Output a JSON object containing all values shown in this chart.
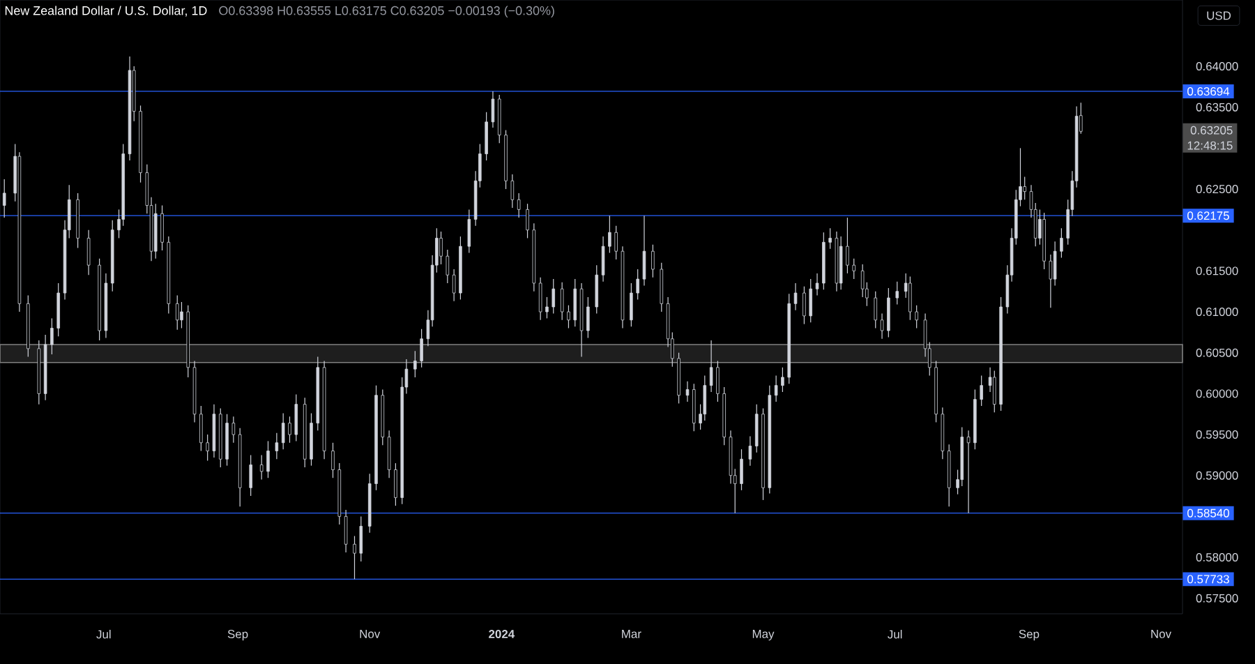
{
  "chart_data": {
    "type": "candlestick",
    "title": "New Zealand Dollar / U.S. Dollar, 1D",
    "subtitle": "O0.63398 H0.63555 L0.63175 C0.63205 −0.00193 (−0.30%)",
    "ylabel": "USD",
    "color": "#d1d4dc",
    "x": [
      "2023-05-16",
      "2023-05-21",
      "2023-05-23",
      "2023-05-27",
      "2023-06-01",
      "2023-06-04",
      "2023-06-07",
      "2023-06-10",
      "2023-06-13",
      "2023-06-15",
      "2023-06-19",
      "2023-06-24",
      "2023-06-29",
      "2023-07-02",
      "2023-07-05",
      "2023-07-08",
      "2023-07-10",
      "2023-07-13",
      "2023-07-15",
      "2023-07-18",
      "2023-07-21",
      "2023-07-23",
      "2023-07-25",
      "2023-07-28",
      "2023-07-31",
      "2023-08-04",
      "2023-08-06",
      "2023-08-09",
      "2023-08-12",
      "2023-08-15",
      "2023-08-18",
      "2023-08-21",
      "2023-08-24",
      "2023-08-27",
      "2023-08-30",
      "2023-09-02",
      "2023-09-07",
      "2023-09-12",
      "2023-09-15",
      "2023-09-19",
      "2023-09-22",
      "2023-09-25",
      "2023-09-28",
      "2023-10-02",
      "2023-10-05",
      "2023-10-08",
      "2023-10-11",
      "2023-10-15",
      "2023-10-18",
      "2023-10-21",
      "2023-10-25",
      "2023-10-28",
      "2023-11-01",
      "2023-11-04",
      "2023-11-07",
      "2023-11-10",
      "2023-11-13",
      "2023-11-16",
      "2023-11-18",
      "2023-11-22",
      "2023-11-25",
      "2023-11-28",
      "2023-11-30",
      "2023-12-02",
      "2023-12-04",
      "2023-12-07",
      "2023-12-10",
      "2023-12-13",
      "2023-12-17",
      "2023-12-20",
      "2023-12-22",
      "2023-12-25",
      "2023-12-28",
      "2023-12-31",
      "2024-01-03",
      "2024-01-06",
      "2024-01-09",
      "2024-01-13",
      "2024-01-16",
      "2024-01-19",
      "2024-01-22",
      "2024-01-25",
      "2024-01-29",
      "2024-02-01",
      "2024-02-04",
      "2024-02-07",
      "2024-02-10",
      "2024-02-14",
      "2024-02-17",
      "2024-02-20",
      "2024-02-23",
      "2024-02-26",
      "2024-03-01",
      "2024-03-04",
      "2024-03-07",
      "2024-03-11",
      "2024-03-15",
      "2024-03-18",
      "2024-03-20",
      "2024-03-23",
      "2024-03-27",
      "2024-03-30",
      "2024-04-02",
      "2024-04-04",
      "2024-04-07",
      "2024-04-10",
      "2024-04-13",
      "2024-04-16",
      "2024-04-18",
      "2024-04-21",
      "2024-04-25",
      "2024-04-28",
      "2024-05-01",
      "2024-05-04",
      "2024-05-07",
      "2024-05-10",
      "2024-05-13",
      "2024-05-16",
      "2024-05-20",
      "2024-05-23",
      "2024-05-26",
      "2024-05-29",
      "2024-06-01",
      "2024-06-04",
      "2024-06-06",
      "2024-06-09",
      "2024-06-12",
      "2024-06-16",
      "2024-06-18",
      "2024-06-22",
      "2024-06-25",
      "2024-06-28",
      "2024-07-02",
      "2024-07-06",
      "2024-07-08",
      "2024-07-11",
      "2024-07-15",
      "2024-07-17",
      "2024-07-20",
      "2024-07-23",
      "2024-07-26",
      "2024-07-30",
      "2024-08-01",
      "2024-08-04",
      "2024-08-07",
      "2024-08-10",
      "2024-08-14",
      "2024-08-16",
      "2024-08-19",
      "2024-08-22",
      "2024-08-24",
      "2024-08-26",
      "2024-08-28",
      "2024-08-30",
      "2024-09-02",
      "2024-09-04",
      "2024-09-06",
      "2024-09-08",
      "2024-09-11",
      "2024-09-13",
      "2024-09-16",
      "2024-09-19",
      "2024-09-21",
      "2024-09-23",
      "2024-09-25"
    ],
    "ohlc": [
      [
        0.623,
        0.6262,
        0.6215,
        0.6245
      ],
      [
        0.6245,
        0.6305,
        0.6235,
        0.629
      ],
      [
        0.629,
        0.6295,
        0.61,
        0.611
      ],
      [
        0.611,
        0.612,
        0.6045,
        0.6055
      ],
      [
        0.6055,
        0.6065,
        0.5987,
        0.6
      ],
      [
        0.6,
        0.6072,
        0.5992,
        0.606
      ],
      [
        0.606,
        0.6092,
        0.6048,
        0.608
      ],
      [
        0.608,
        0.6135,
        0.607,
        0.6123
      ],
      [
        0.6123,
        0.6212,
        0.6115,
        0.62
      ],
      [
        0.62,
        0.6255,
        0.619,
        0.6237
      ],
      [
        0.6237,
        0.6245,
        0.6178,
        0.619
      ],
      [
        0.619,
        0.62,
        0.6145,
        0.6157
      ],
      [
        0.6157,
        0.6165,
        0.6065,
        0.6077
      ],
      [
        0.6077,
        0.6147,
        0.6068,
        0.6135
      ],
      [
        0.6135,
        0.6212,
        0.6125,
        0.62
      ],
      [
        0.62,
        0.6225,
        0.619,
        0.6213
      ],
      [
        0.6213,
        0.6305,
        0.6205,
        0.6293
      ],
      [
        0.6293,
        0.6412,
        0.6285,
        0.6395
      ],
      [
        0.6395,
        0.64,
        0.6333,
        0.6345
      ],
      [
        0.6345,
        0.6352,
        0.6258,
        0.627
      ],
      [
        0.627,
        0.628,
        0.622,
        0.623
      ],
      [
        0.623,
        0.624,
        0.6162,
        0.6174
      ],
      [
        0.6174,
        0.6232,
        0.6165,
        0.622
      ],
      [
        0.622,
        0.623,
        0.6175,
        0.6185
      ],
      [
        0.6185,
        0.6192,
        0.6098,
        0.611
      ],
      [
        0.611,
        0.612,
        0.6078,
        0.609
      ],
      [
        0.609,
        0.6112,
        0.608,
        0.61
      ],
      [
        0.61,
        0.6108,
        0.602,
        0.6032
      ],
      [
        0.6032,
        0.604,
        0.5965,
        0.5975
      ],
      [
        0.5975,
        0.5985,
        0.593,
        0.594
      ],
      [
        0.594,
        0.595,
        0.5918,
        0.593
      ],
      [
        0.593,
        0.5987,
        0.5922,
        0.5975
      ],
      [
        0.5975,
        0.5982,
        0.591,
        0.592
      ],
      [
        0.592,
        0.5975,
        0.5912,
        0.5964
      ],
      [
        0.5964,
        0.5972,
        0.594,
        0.595
      ],
      [
        0.595,
        0.5958,
        0.5862,
        0.5885
      ],
      [
        0.5885,
        0.5925,
        0.5875,
        0.5913
      ],
      [
        0.5913,
        0.5925,
        0.5895,
        0.5905
      ],
      [
        0.5905,
        0.5942,
        0.5897,
        0.593
      ],
      [
        0.593,
        0.5952,
        0.592,
        0.594
      ],
      [
        0.594,
        0.5976,
        0.5932,
        0.5964
      ],
      [
        0.5964,
        0.5972,
        0.594,
        0.595
      ],
      [
        0.595,
        0.5999,
        0.5942,
        0.5987
      ],
      [
        0.5987,
        0.5995,
        0.591,
        0.592
      ],
      [
        0.592,
        0.5976,
        0.5912,
        0.5964
      ],
      [
        0.5964,
        0.6045,
        0.5955,
        0.6032
      ],
      [
        0.6032,
        0.604,
        0.592,
        0.593
      ],
      [
        0.593,
        0.594,
        0.5897,
        0.5907
      ],
      [
        0.5907,
        0.5915,
        0.584,
        0.585
      ],
      [
        0.585,
        0.5858,
        0.5806,
        0.5816
      ],
      [
        0.5816,
        0.5826,
        0.57733,
        0.5805
      ],
      [
        0.5805,
        0.585,
        0.5795,
        0.5838
      ],
      [
        0.5838,
        0.5902,
        0.583,
        0.589
      ],
      [
        0.589,
        0.601,
        0.5882,
        0.5998
      ],
      [
        0.5998,
        0.6005,
        0.5937,
        0.5947
      ],
      [
        0.5947,
        0.5955,
        0.5897,
        0.5907
      ],
      [
        0.5907,
        0.5915,
        0.5863,
        0.5873
      ],
      [
        0.5873,
        0.602,
        0.5865,
        0.6008
      ],
      [
        0.6008,
        0.6042,
        0.6,
        0.603
      ],
      [
        0.603,
        0.6052,
        0.602,
        0.604
      ],
      [
        0.604,
        0.6079,
        0.6032,
        0.6067
      ],
      [
        0.6067,
        0.6102,
        0.6058,
        0.609
      ],
      [
        0.609,
        0.6169,
        0.6082,
        0.6157
      ],
      [
        0.6157,
        0.6202,
        0.6148,
        0.619
      ],
      [
        0.619,
        0.6198,
        0.6158,
        0.6168
      ],
      [
        0.6168,
        0.6176,
        0.6135,
        0.6145
      ],
      [
        0.6145,
        0.6152,
        0.6113,
        0.6123
      ],
      [
        0.6123,
        0.6192,
        0.6115,
        0.618
      ],
      [
        0.618,
        0.6225,
        0.6172,
        0.6213
      ],
      [
        0.6213,
        0.6272,
        0.6205,
        0.626
      ],
      [
        0.626,
        0.6305,
        0.6252,
        0.6293
      ],
      [
        0.6293,
        0.6344,
        0.6285,
        0.6332
      ],
      [
        0.6332,
        0.63694,
        0.6325,
        0.636
      ],
      [
        0.636,
        0.6365,
        0.6306,
        0.6316
      ],
      [
        0.6316,
        0.6322,
        0.625,
        0.626
      ],
      [
        0.626,
        0.6268,
        0.6227,
        0.6237
      ],
      [
        0.6237,
        0.6245,
        0.6215,
        0.6225
      ],
      [
        0.6225,
        0.6232,
        0.619,
        0.62
      ],
      [
        0.62,
        0.6208,
        0.6125,
        0.6135
      ],
      [
        0.6135,
        0.6142,
        0.609,
        0.61
      ],
      [
        0.61,
        0.6118,
        0.6092,
        0.6106
      ],
      [
        0.6106,
        0.614,
        0.6098,
        0.6128
      ],
      [
        0.6128,
        0.6136,
        0.609,
        0.61
      ],
      [
        0.61,
        0.6108,
        0.608,
        0.609
      ],
      [
        0.609,
        0.614,
        0.6082,
        0.6128
      ],
      [
        0.6128,
        0.6135,
        0.6045,
        0.6077
      ],
      [
        0.6077,
        0.6118,
        0.6068,
        0.6106
      ],
      [
        0.6106,
        0.6157,
        0.6098,
        0.6145
      ],
      [
        0.6145,
        0.6192,
        0.6137,
        0.618
      ],
      [
        0.618,
        0.62175,
        0.6172,
        0.6197
      ],
      [
        0.6197,
        0.6205,
        0.6164,
        0.6174
      ],
      [
        0.6174,
        0.618,
        0.608,
        0.609
      ],
      [
        0.609,
        0.6135,
        0.6082,
        0.6123
      ],
      [
        0.6123,
        0.6152,
        0.6115,
        0.614
      ],
      [
        0.614,
        0.62175,
        0.6132,
        0.6174
      ],
      [
        0.6174,
        0.6182,
        0.6142,
        0.6152
      ],
      [
        0.6152,
        0.616,
        0.61,
        0.611
      ],
      [
        0.611,
        0.6118,
        0.6057,
        0.6067
      ],
      [
        0.6067,
        0.6075,
        0.6033,
        0.6043
      ],
      [
        0.6043,
        0.605,
        0.5988,
        0.5998
      ],
      [
        0.5998,
        0.6015,
        0.599,
        0.6005
      ],
      [
        0.6005,
        0.6012,
        0.5954,
        0.5964
      ],
      [
        0.5964,
        0.5987,
        0.5956,
        0.5975
      ],
      [
        0.5975,
        0.6022,
        0.5967,
        0.601
      ],
      [
        0.601,
        0.6065,
        0.6002,
        0.6032
      ],
      [
        0.6032,
        0.604,
        0.599,
        0.6
      ],
      [
        0.6,
        0.6008,
        0.5937,
        0.5947
      ],
      [
        0.5947,
        0.5955,
        0.589,
        0.59
      ],
      [
        0.59,
        0.5908,
        0.5854,
        0.589
      ],
      [
        0.589,
        0.5932,
        0.5882,
        0.592
      ],
      [
        0.592,
        0.5948,
        0.5912,
        0.5936
      ],
      [
        0.5936,
        0.5987,
        0.5928,
        0.5975
      ],
      [
        0.5975,
        0.5982,
        0.587,
        0.5885
      ],
      [
        0.5885,
        0.601,
        0.5878,
        0.5998
      ],
      [
        0.5998,
        0.6022,
        0.599,
        0.601
      ],
      [
        0.601,
        0.6032,
        0.6002,
        0.602
      ],
      [
        0.602,
        0.6122,
        0.6012,
        0.611
      ],
      [
        0.611,
        0.6135,
        0.6102,
        0.6123
      ],
      [
        0.6123,
        0.6131,
        0.6085,
        0.6095
      ],
      [
        0.6095,
        0.614,
        0.6087,
        0.6128
      ],
      [
        0.6128,
        0.6147,
        0.612,
        0.6135
      ],
      [
        0.6135,
        0.6197,
        0.6127,
        0.6185
      ],
      [
        0.6185,
        0.6202,
        0.6177,
        0.619
      ],
      [
        0.619,
        0.6198,
        0.6125,
        0.6135
      ],
      [
        0.6135,
        0.6192,
        0.6127,
        0.618
      ],
      [
        0.618,
        0.6215,
        0.6147,
        0.6157
      ],
      [
        0.6157,
        0.6165,
        0.614,
        0.615
      ],
      [
        0.615,
        0.6158,
        0.6118,
        0.6128
      ],
      [
        0.6128,
        0.6136,
        0.6107,
        0.6117
      ],
      [
        0.6117,
        0.6125,
        0.608,
        0.609
      ],
      [
        0.609,
        0.6098,
        0.6067,
        0.6077
      ],
      [
        0.6077,
        0.6129,
        0.6069,
        0.6117
      ],
      [
        0.6117,
        0.6137,
        0.6109,
        0.6125
      ],
      [
        0.6125,
        0.6147,
        0.6117,
        0.6135
      ],
      [
        0.6135,
        0.6143,
        0.609,
        0.61
      ],
      [
        0.61,
        0.6108,
        0.608,
        0.609
      ],
      [
        0.609,
        0.6098,
        0.6045,
        0.6055
      ],
      [
        0.6055,
        0.6063,
        0.6022,
        0.6032
      ],
      [
        0.6032,
        0.604,
        0.5965,
        0.5975
      ],
      [
        0.5975,
        0.5983,
        0.592,
        0.593
      ],
      [
        0.593,
        0.5938,
        0.5862,
        0.5885
      ],
      [
        0.5885,
        0.5907,
        0.5877,
        0.5895
      ],
      [
        0.5895,
        0.5959,
        0.5887,
        0.5947
      ],
      [
        0.5947,
        0.5955,
        0.5854,
        0.594
      ],
      [
        0.594,
        0.6005,
        0.5932,
        0.5993
      ],
      [
        0.5993,
        0.6022,
        0.5985,
        0.601
      ],
      [
        0.601,
        0.6032,
        0.6002,
        0.602
      ],
      [
        0.602,
        0.6028,
        0.5977,
        0.5987
      ],
      [
        0.5987,
        0.6118,
        0.5979,
        0.6106
      ],
      [
        0.6106,
        0.6157,
        0.6098,
        0.6145
      ],
      [
        0.6145,
        0.6202,
        0.6137,
        0.619
      ],
      [
        0.619,
        0.6249,
        0.6182,
        0.6237
      ],
      [
        0.6237,
        0.63,
        0.6229,
        0.6253
      ],
      [
        0.6253,
        0.6265,
        0.6237,
        0.6247
      ],
      [
        0.6247,
        0.6255,
        0.6215,
        0.6225
      ],
      [
        0.6225,
        0.6233,
        0.618,
        0.619
      ],
      [
        0.619,
        0.6225,
        0.6182,
        0.6213
      ],
      [
        0.6213,
        0.6221,
        0.6152,
        0.6162
      ],
      [
        0.6162,
        0.617,
        0.6105,
        0.614
      ],
      [
        0.614,
        0.6186,
        0.6132,
        0.6174
      ],
      [
        0.6174,
        0.6202,
        0.6166,
        0.619
      ],
      [
        0.619,
        0.6237,
        0.6182,
        0.6225
      ],
      [
        0.6225,
        0.6272,
        0.6217,
        0.626
      ],
      [
        0.626,
        0.6351,
        0.6252,
        0.6339
      ],
      [
        0.63398,
        0.63555,
        0.63175,
        0.63205
      ]
    ],
    "xlim": [
      "2023-05-14",
      "2024-11-11"
    ],
    "xticks": [
      {
        "value": "2023-07-01",
        "label": "Jul"
      },
      {
        "value": "2023-09-01",
        "label": "Sep"
      },
      {
        "value": "2023-11-01",
        "label": "Nov"
      },
      {
        "value": "2024-01-01",
        "label": "2024"
      },
      {
        "value": "2024-03-01",
        "label": "Mar"
      },
      {
        "value": "2024-05-01",
        "label": "May"
      },
      {
        "value": "2024-07-01",
        "label": "Jul"
      },
      {
        "value": "2024-09-01",
        "label": "Sep"
      },
      {
        "value": "2024-11-01",
        "label": "Nov"
      }
    ],
    "ylim": [
      0.5731,
      0.6481
    ],
    "yticks": [
      {
        "value": 0.575,
        "label": "0.57500"
      },
      {
        "value": 0.58,
        "label": "0.58000"
      },
      {
        "value": 0.59,
        "label": "0.59000"
      },
      {
        "value": 0.595,
        "label": "0.59500"
      },
      {
        "value": 0.6,
        "label": "0.60000"
      },
      {
        "value": 0.605,
        "label": "0.60500"
      },
      {
        "value": 0.61,
        "label": "0.61000"
      },
      {
        "value": 0.615,
        "label": "0.61500"
      },
      {
        "value": 0.625,
        "label": "0.62500"
      },
      {
        "value": 0.635,
        "label": "0.63500"
      },
      {
        "value": 0.64,
        "label": "0.64000"
      }
    ],
    "ref_lines": [
      {
        "axis": "y",
        "value": 0.63694,
        "label": "0.63694",
        "color": "#2962ff"
      },
      {
        "axis": "y",
        "value": 0.62175,
        "label": "0.62175",
        "color": "#2962ff"
      },
      {
        "axis": "y",
        "value": 0.5854,
        "label": "0.58540",
        "color": "#2962ff"
      },
      {
        "axis": "y",
        "value": 0.57733,
        "label": "0.57733",
        "color": "#2962ff"
      }
    ],
    "bands": [
      {
        "axis": "y",
        "from": 0.6038,
        "to": 0.606,
        "color": "#1e1e1e"
      }
    ],
    "annotations": [
      "0.63205",
      "12:48:15"
    ],
    "grid": false
  }
}
